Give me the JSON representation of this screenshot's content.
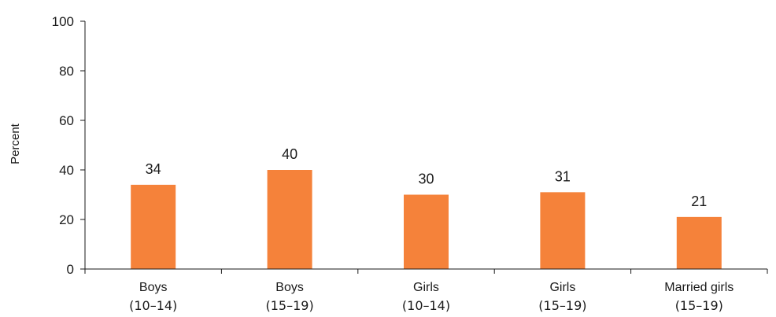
{
  "chart_data": {
    "type": "bar",
    "categories": [
      {
        "line1": "Boys",
        "line2": "(10–14)"
      },
      {
        "line1": "Boys",
        "line2": "(15–19)"
      },
      {
        "line1": "Girls",
        "line2": "(10–14)"
      },
      {
        "line1": "Girls",
        "line2": "(15–19)"
      },
      {
        "line1": "Married girls",
        "line2": "(15–19)"
      }
    ],
    "values": [
      34,
      40,
      30,
      31,
      21
    ],
    "data_labels": [
      "34",
      "40",
      "30",
      "31",
      "21"
    ],
    "ylabel": "Percent",
    "ylim": [
      0,
      100
    ],
    "yticks": [
      0,
      20,
      40,
      60,
      80,
      100
    ],
    "bar_color": "#f5823a",
    "grid": false,
    "legend": "none"
  }
}
